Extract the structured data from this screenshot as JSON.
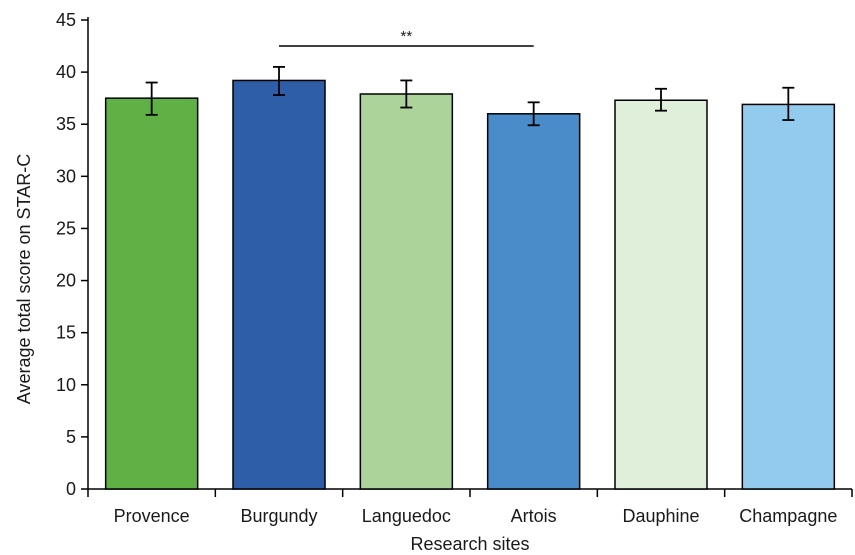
{
  "chart_data": {
    "type": "bar",
    "title": "",
    "xlabel": "Research sites",
    "ylabel": "Average total score on STAR-C",
    "ylim": [
      0,
      45
    ],
    "yticks": [
      0,
      5,
      10,
      15,
      20,
      25,
      30,
      35,
      40,
      45
    ],
    "grid": false,
    "legend": "none",
    "categories": [
      "Provence",
      "Burgundy",
      "Languedoc",
      "Artois",
      "Dauphine",
      "Champagne"
    ],
    "values": [
      37.5,
      39.2,
      37.9,
      36.0,
      37.3,
      36.9
    ],
    "error_low": [
      35.9,
      37.8,
      36.6,
      34.9,
      36.3,
      35.4
    ],
    "error_high": [
      39.0,
      40.5,
      39.2,
      37.1,
      38.4,
      38.5
    ],
    "colors": [
      "#5fb045",
      "#2f5ea8",
      "#acd49a",
      "#4a8bc9",
      "#e0efd9",
      "#93cbee"
    ],
    "significance": {
      "from": "Burgundy",
      "to": "Artois",
      "label": "**",
      "y": 42.5
    }
  }
}
